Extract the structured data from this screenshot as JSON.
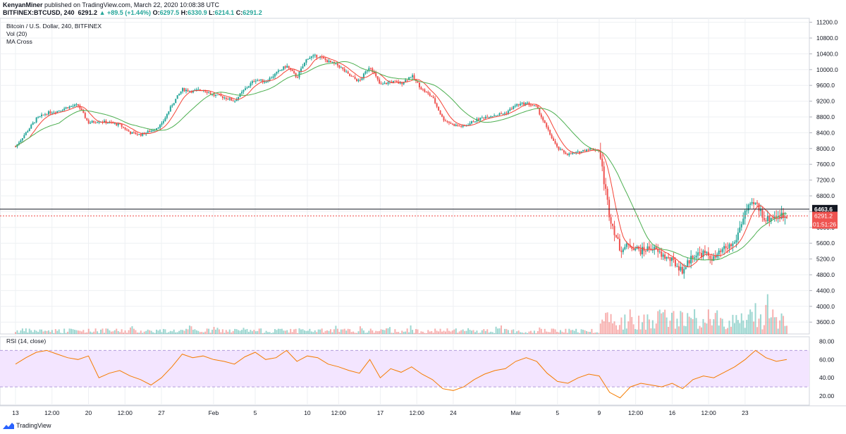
{
  "header": {
    "author": "KenyanMiner",
    "published_text": " published on TradingView.com, March 22, 2020 10:08:38 UTC",
    "symbol": "BITFINEX:BTCUSD, 240",
    "last": "6291.2",
    "change": "+89.5 (+1.44%)",
    "o_label": "O:",
    "o": "6297.5",
    "h_label": "H:",
    "h": "6330.9",
    "l_label": "L:",
    "l": "6214.1",
    "c_label": "C:",
    "c": "6291.2"
  },
  "legend": {
    "title": "Bitcoin / U.S. Dollar, 240, BITFINEX",
    "vol": "Vol (20)",
    "ma": "MA Cross",
    "rsi": "RSI (14, close)"
  },
  "footer": {
    "brand": "TradingView"
  },
  "colors": {
    "up": "#26a69a",
    "down": "#ef5350",
    "ma_fast": "#f44336",
    "ma_slow": "#4caf50",
    "rsi": "#f57c00",
    "rsi_band": "#f3e5ff",
    "grid": "#eef0f3"
  },
  "chart_data": [
    {
      "type": "candlestick",
      "title": "Bitcoin / U.S. Dollar, 240, BITFINEX",
      "ylim": [
        3300,
        11300
      ],
      "y_ticks": [
        3600,
        4000,
        4400,
        4800,
        5200,
        5600,
        6000,
        6400,
        6800,
        7200,
        7600,
        8000,
        8400,
        8800,
        9200,
        9600,
        10000,
        10400,
        10800,
        11200
      ],
      "y_tick_labels": [
        "3600.0",
        "4000.0",
        "4400.0",
        "4800.0",
        "5200.0",
        "5600.0",
        "6000.0",
        "6400.0",
        "6800.0",
        "7200.0",
        "7600.0",
        "8000.0",
        "8400.0",
        "8800.0",
        "9200.0",
        "9600.0",
        "10000.0",
        "10400.0",
        "10800.0",
        "11200.0"
      ],
      "x_ticks": [
        0,
        3,
        7,
        10,
        14,
        17,
        21,
        25,
        28,
        32,
        35,
        39,
        42,
        46,
        49,
        53,
        56,
        60,
        63,
        67,
        70,
        74,
        77,
        81,
        84,
        88,
        91,
        94
      ],
      "x_tick_labels": [
        "13",
        "12:00",
        "20",
        "12:00",
        "27",
        "Feb",
        "5",
        "10",
        "12:00",
        "17",
        "12:00",
        "24",
        "Mar",
        "5",
        "9",
        "12:00",
        "16",
        "12:00",
        "23",
        "",
        "",
        "",
        "",
        "",
        "",
        "",
        "",
        ""
      ],
      "x_axis_labels": [
        {
          "day": 0,
          "label": "13"
        },
        {
          "day": 3.5,
          "label": "12:00"
        },
        {
          "day": 7,
          "label": "20"
        },
        {
          "day": 10.5,
          "label": "12:00"
        },
        {
          "day": 14,
          "label": "27"
        },
        {
          "day": 19,
          "label": "Feb"
        },
        {
          "day": 23,
          "label": "5"
        },
        {
          "day": 28,
          "label": "10"
        },
        {
          "day": 31,
          "label": "12:00"
        },
        {
          "day": 35,
          "label": "17"
        },
        {
          "day": 38.5,
          "label": "12:00"
        },
        {
          "day": 42,
          "label": "24"
        },
        {
          "day": 48,
          "label": "Mar"
        },
        {
          "day": 52,
          "label": "5"
        },
        {
          "day": 56,
          "label": "9"
        },
        {
          "day": 59.5,
          "label": "12:00"
        },
        {
          "day": 63,
          "label": "16"
        },
        {
          "day": 66.5,
          "label": "12:00"
        },
        {
          "day": 70,
          "label": "23"
        }
      ],
      "close_path": [
        [
          0,
          8050
        ],
        [
          1,
          8400
        ],
        [
          2,
          8750
        ],
        [
          3,
          8900
        ],
        [
          4,
          8950
        ],
        [
          5,
          9050
        ],
        [
          6,
          9100
        ],
        [
          7,
          8650
        ],
        [
          8,
          8700
        ],
        [
          9,
          8650
        ],
        [
          10,
          8600
        ],
        [
          11,
          8400
        ],
        [
          12,
          8350
        ],
        [
          13,
          8450
        ],
        [
          14,
          8600
        ],
        [
          15,
          9100
        ],
        [
          16,
          9500
        ],
        [
          17,
          9450
        ],
        [
          18,
          9500
        ],
        [
          19,
          9350
        ],
        [
          20,
          9300
        ],
        [
          21,
          9200
        ],
        [
          22,
          9500
        ],
        [
          23,
          9750
        ],
        [
          24,
          9700
        ],
        [
          25,
          9900
        ],
        [
          26,
          10100
        ],
        [
          27,
          9800
        ],
        [
          28,
          10300
        ],
        [
          29,
          10350
        ],
        [
          30,
          10200
        ],
        [
          31,
          10100
        ],
        [
          32,
          9850
        ],
        [
          33,
          9700
        ],
        [
          34,
          10100
        ],
        [
          35,
          9600
        ],
        [
          36,
          9700
        ],
        [
          37,
          9650
        ],
        [
          38,
          9850
        ],
        [
          39,
          9500
        ],
        [
          40,
          9300
        ],
        [
          41,
          8750
        ],
        [
          42,
          8600
        ],
        [
          43,
          8550
        ],
        [
          44,
          8700
        ],
        [
          45,
          8800
        ],
        [
          46,
          8850
        ],
        [
          47,
          8900
        ],
        [
          48,
          9100
        ],
        [
          49,
          9150
        ],
        [
          50,
          9050
        ],
        [
          51,
          8500
        ],
        [
          52,
          8000
        ],
        [
          53,
          7850
        ],
        [
          54,
          7900
        ],
        [
          55,
          8000
        ],
        [
          56,
          7950
        ],
        [
          57,
          6300
        ],
        [
          58,
          5450
        ],
        [
          59,
          5550
        ],
        [
          60,
          5400
        ],
        [
          61,
          5500
        ],
        [
          62,
          5300
        ],
        [
          63,
          5150
        ],
        [
          64,
          4900
        ],
        [
          65,
          5300
        ],
        [
          66,
          5350
        ],
        [
          67,
          5200
        ],
        [
          68,
          5450
        ],
        [
          69,
          5600
        ],
        [
          70,
          6400
        ],
        [
          71,
          6600
        ],
        [
          72,
          6200
        ],
        [
          73,
          6300
        ],
        [
          74,
          6291
        ]
      ],
      "current_price": 6291.2,
      "current_price_label": "6291.2",
      "countdown_label": "01:51:26",
      "horizontal_line": 6463.6,
      "horizontal_line_label": "6463.6"
    },
    {
      "type": "line",
      "title": "RSI (14, close)",
      "ylim": [
        10,
        85
      ],
      "y_ticks": [
        20,
        40,
        60,
        80
      ],
      "y_tick_labels": [
        "20.00",
        "40.00",
        "60.00",
        "80.00"
      ],
      "band": [
        30,
        70
      ],
      "values": [
        55,
        62,
        68,
        70,
        66,
        62,
        60,
        64,
        40,
        45,
        48,
        42,
        38,
        32,
        40,
        52,
        66,
        62,
        64,
        60,
        58,
        55,
        63,
        68,
        60,
        62,
        70,
        58,
        64,
        62,
        55,
        52,
        48,
        45,
        60,
        40,
        50,
        46,
        52,
        44,
        38,
        28,
        26,
        30,
        38,
        44,
        48,
        50,
        58,
        62,
        58,
        45,
        36,
        34,
        40,
        44,
        42,
        24,
        18,
        30,
        34,
        32,
        30,
        34,
        28,
        38,
        42,
        40,
        46,
        52,
        60,
        70,
        62,
        58,
        60
      ]
    }
  ]
}
